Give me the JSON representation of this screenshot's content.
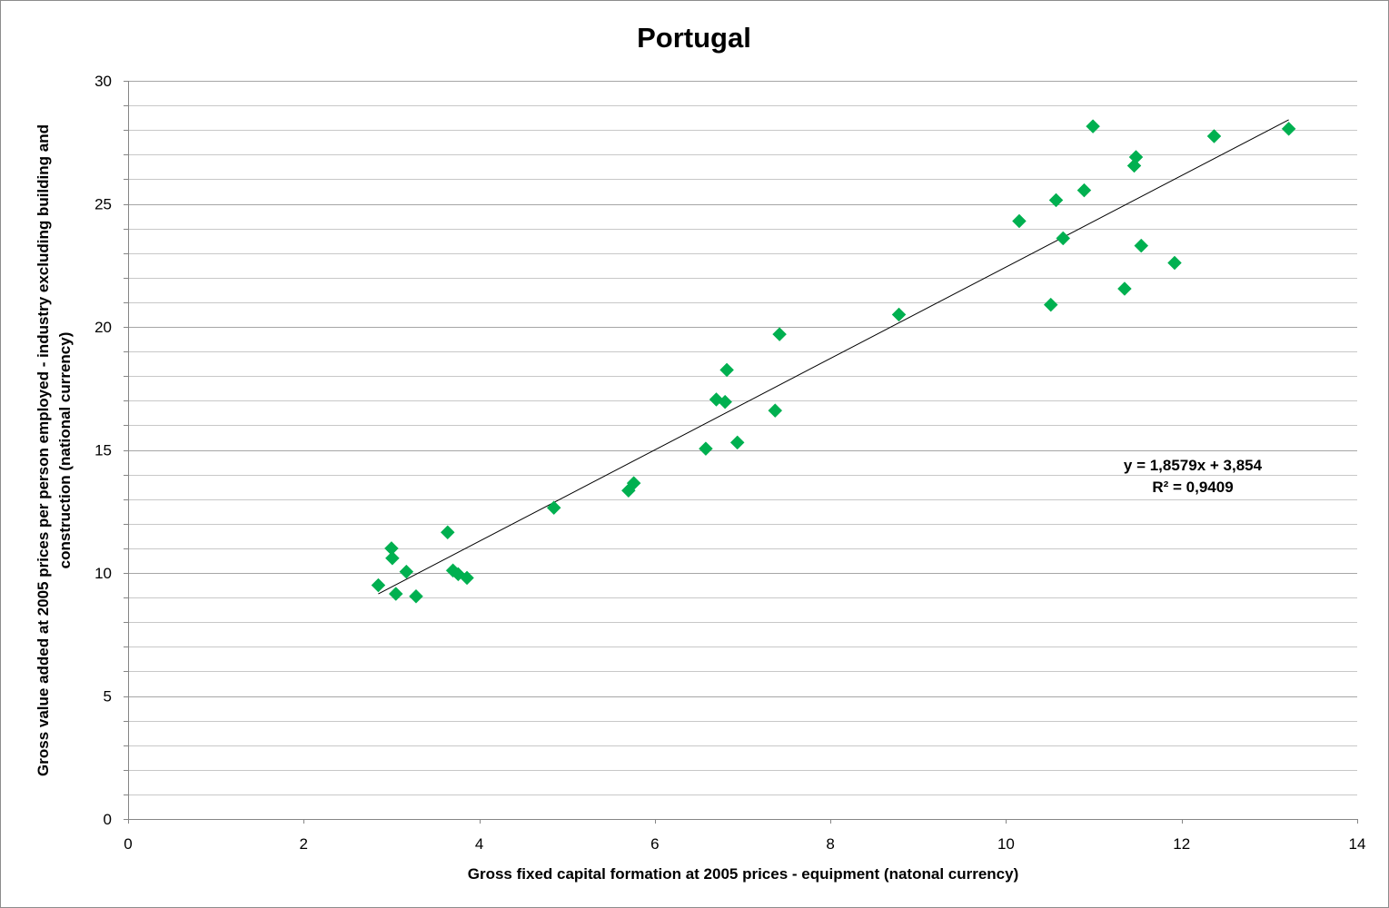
{
  "chart_data": {
    "type": "scatter",
    "title": "Portugal",
    "xlabel": "Gross fixed capital formation at 2005 prices - equipment (natonal currency)",
    "ylabel_lines": [
      "Gross value added at 2005 prices per person employed - industry excluding building and",
      "construction (national currency)"
    ],
    "xlim": [
      0,
      14
    ],
    "ylim": [
      0,
      30
    ],
    "x_ticks": [
      "0",
      "2",
      "4",
      "6",
      "8",
      "10",
      "12",
      "14"
    ],
    "y_ticks": [
      "0",
      "5",
      "10",
      "15",
      "20",
      "25",
      "30"
    ],
    "grid": "horizontal",
    "marker": "diamond",
    "marker_color": "#00b050",
    "points": [
      {
        "x": 2.85,
        "y": 9.5
      },
      {
        "x": 3.0,
        "y": 11.0
      },
      {
        "x": 3.01,
        "y": 10.6
      },
      {
        "x": 3.05,
        "y": 9.15
      },
      {
        "x": 3.17,
        "y": 10.05
      },
      {
        "x": 3.28,
        "y": 9.05
      },
      {
        "x": 3.64,
        "y": 11.65
      },
      {
        "x": 3.7,
        "y": 10.1
      },
      {
        "x": 3.76,
        "y": 9.95
      },
      {
        "x": 3.86,
        "y": 9.8
      },
      {
        "x": 4.85,
        "y": 12.65
      },
      {
        "x": 5.7,
        "y": 13.35
      },
      {
        "x": 5.76,
        "y": 13.65
      },
      {
        "x": 6.58,
        "y": 15.05
      },
      {
        "x": 6.7,
        "y": 17.05
      },
      {
        "x": 6.8,
        "y": 16.95
      },
      {
        "x": 6.82,
        "y": 18.25
      },
      {
        "x": 6.94,
        "y": 15.3
      },
      {
        "x": 7.37,
        "y": 16.6
      },
      {
        "x": 7.42,
        "y": 19.7
      },
      {
        "x": 8.78,
        "y": 20.5
      },
      {
        "x": 10.15,
        "y": 24.3
      },
      {
        "x": 10.51,
        "y": 20.9
      },
      {
        "x": 10.57,
        "y": 25.15
      },
      {
        "x": 10.65,
        "y": 23.6
      },
      {
        "x": 10.89,
        "y": 25.55
      },
      {
        "x": 10.99,
        "y": 28.15
      },
      {
        "x": 11.35,
        "y": 21.55
      },
      {
        "x": 11.46,
        "y": 26.55
      },
      {
        "x": 11.48,
        "y": 26.9
      },
      {
        "x": 11.54,
        "y": 23.3
      },
      {
        "x": 11.92,
        "y": 22.6
      },
      {
        "x": 12.37,
        "y": 27.75
      },
      {
        "x": 13.22,
        "y": 28.05
      }
    ],
    "trendline": {
      "slope": 1.8579,
      "intercept": 3.854,
      "x_range": [
        2.85,
        13.22
      ],
      "equation": "y = 1,8579x + 3,854",
      "r_squared": "R² = 0,9409"
    }
  }
}
